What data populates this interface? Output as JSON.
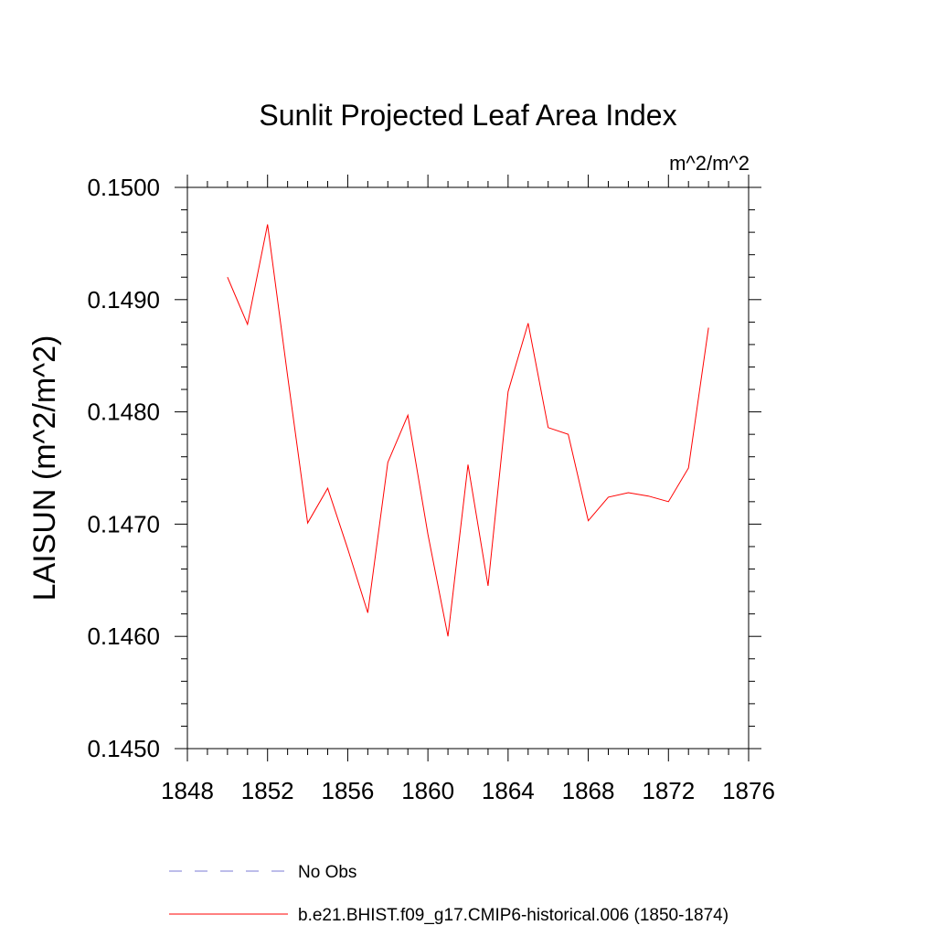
{
  "chart_data": {
    "type": "line",
    "title": "Sunlit Projected Leaf Area Index",
    "units_label": "m^2/m^2",
    "ylabel": "LAISUN  (m^2/m^2)",
    "xlabel": "",
    "xlim": [
      1848,
      1876
    ],
    "ylim": [
      0.145,
      0.15
    ],
    "x_ticks": [
      "1848",
      "1852",
      "1856",
      "1860",
      "1864",
      "1868",
      "1872",
      "1876"
    ],
    "y_ticks": [
      "0.1450",
      "0.1460",
      "0.1470",
      "0.1480",
      "0.1490",
      "0.1500"
    ],
    "grid": false,
    "legend_position": "bottom",
    "series": [
      {
        "name": "No Obs",
        "color": "#7b7bd6",
        "dash": "dashed",
        "x": [],
        "values": []
      },
      {
        "name": "b.e21.BHIST.f09_g17.CMIP6-historical.006 (1850-1874)",
        "color": "#ff0000",
        "dash": "solid",
        "x": [
          1850,
          1851,
          1852,
          1853,
          1854,
          1855,
          1856,
          1857,
          1858,
          1859,
          1860,
          1861,
          1862,
          1863,
          1864,
          1865,
          1866,
          1867,
          1868,
          1869,
          1870,
          1871,
          1872,
          1873,
          1874
        ],
        "values": [
          0.1492,
          0.14878,
          0.14967,
          0.14832,
          0.14701,
          0.14732,
          0.14678,
          0.14621,
          0.14755,
          0.14797,
          0.14691,
          0.146,
          0.14753,
          0.14645,
          0.14818,
          0.14879,
          0.14786,
          0.1478,
          0.14703,
          0.14724,
          0.14728,
          0.14725,
          0.1472,
          0.1475,
          0.14875
        ]
      }
    ]
  }
}
